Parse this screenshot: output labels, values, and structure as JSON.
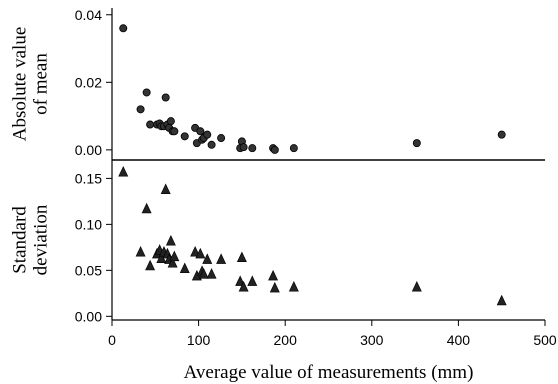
{
  "chart_data": [
    {
      "type": "scatter",
      "marker": "circle",
      "ylabel_lines": [
        "Absolute value",
        "of mean"
      ],
      "xlim": [
        0,
        500
      ],
      "ylim": [
        -0.003,
        0.042
      ],
      "yticks": [
        0,
        0.02,
        0.04
      ],
      "ytick_labels": [
        "0.00",
        "0.02",
        "0.04"
      ],
      "x_shared": true,
      "series": [
        {
          "color": "#000000",
          "x": [
            13,
            33,
            40,
            44,
            52,
            55,
            57,
            60,
            62,
            64,
            66,
            68,
            70,
            72,
            84,
            96,
            98,
            102,
            104,
            106,
            110,
            115,
            126,
            148,
            150,
            152,
            162,
            186,
            188,
            210,
            352,
            450
          ],
          "y": [
            0.036,
            0.012,
            0.017,
            0.0075,
            0.0075,
            0.0078,
            0.007,
            0.007,
            0.0155,
            0.0075,
            0.0065,
            0.0085,
            0.0055,
            0.0055,
            0.004,
            0.0065,
            0.002,
            0.0055,
            0.003,
            0.0035,
            0.0045,
            0.0015,
            0.0035,
            0.0005,
            0.0025,
            0.0008,
            0.0005,
            0.0005,
            0.0,
            0.0005,
            0.002,
            0.0045
          ]
        }
      ]
    },
    {
      "type": "scatter",
      "marker": "triangle",
      "ylabel_lines": [
        "Standard",
        "deviation"
      ],
      "xlabel": "Average value of measurements (mm)",
      "xlim": [
        0,
        500
      ],
      "ylim": [
        -0.004,
        0.17
      ],
      "xticks": [
        0,
        100,
        200,
        300,
        400,
        500
      ],
      "xtick_labels": [
        "0",
        "100",
        "200",
        "300",
        "400",
        "500"
      ],
      "yticks": [
        0,
        0.05,
        0.1,
        0.15
      ],
      "ytick_labels": [
        "0.00",
        "0.05",
        "0.10",
        "0.15"
      ],
      "series": [
        {
          "color": "#000000",
          "x": [
            13,
            33,
            40,
            44,
            52,
            55,
            57,
            60,
            62,
            64,
            66,
            68,
            70,
            72,
            84,
            96,
            98,
            102,
            104,
            106,
            110,
            115,
            126,
            148,
            150,
            152,
            162,
            186,
            188,
            210,
            352,
            450
          ],
          "y": [
            0.157,
            0.07,
            0.117,
            0.055,
            0.068,
            0.072,
            0.063,
            0.07,
            0.138,
            0.068,
            0.062,
            0.082,
            0.058,
            0.065,
            0.052,
            0.07,
            0.044,
            0.068,
            0.049,
            0.046,
            0.062,
            0.046,
            0.062,
            0.038,
            0.064,
            0.032,
            0.038,
            0.044,
            0.031,
            0.032,
            0.032,
            0.017
          ]
        }
      ]
    }
  ]
}
